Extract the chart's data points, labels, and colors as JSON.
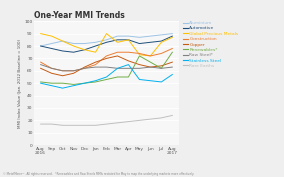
{
  "title": "One-Year MMI Trends",
  "ylabel": "MMI Index Value (Jan. 2012 Baseline = 100)",
  "x_labels": [
    "Aug\n2016",
    "Sep",
    "Oct",
    "Nov",
    "Dec",
    "Jan",
    "Feb",
    "Mar",
    "Apr",
    "May",
    "Jun",
    "Jul",
    "Aug\n2017"
  ],
  "ylim": [
    0,
    100
  ],
  "yticks": [
    0,
    10,
    20,
    30,
    40,
    50,
    60,
    70,
    80,
    90,
    100
  ],
  "series": [
    {
      "name": "Aluminium",
      "color": "#9dc3e6",
      "values": [
        80,
        82,
        84,
        82,
        82,
        83,
        85,
        88,
        88,
        87,
        88,
        89,
        90
      ]
    },
    {
      "name": "Automotive",
      "color": "#1f4e79",
      "values": [
        80,
        78,
        76,
        75,
        77,
        80,
        83,
        85,
        85,
        82,
        83,
        84,
        88
      ]
    },
    {
      "name": "Global Precious Metals",
      "color": "#ffc000",
      "values": [
        90,
        88,
        84,
        80,
        77,
        75,
        90,
        83,
        85,
        73,
        72,
        83,
        87
      ]
    },
    {
      "name": "Construction",
      "color": "#ed7d31",
      "values": [
        67,
        62,
        60,
        60,
        62,
        65,
        72,
        75,
        75,
        74,
        72,
        74,
        78
      ]
    },
    {
      "name": "Copper",
      "color": "#c55a11",
      "values": [
        62,
        58,
        56,
        58,
        63,
        67,
        70,
        72,
        68,
        65,
        63,
        64,
        67
      ]
    },
    {
      "name": "Renewables*",
      "color": "#70ad47",
      "values": [
        51,
        50,
        50,
        49,
        50,
        51,
        53,
        55,
        55,
        72,
        67,
        62,
        75
      ]
    },
    {
      "name": "Raw Steel*",
      "color": "#808080",
      "values": [
        65,
        62,
        60,
        60,
        62,
        63,
        63,
        62,
        62,
        62,
        63,
        62,
        63
      ]
    },
    {
      "name": "Stainless Steel",
      "color": "#00b0f0",
      "values": [
        50,
        48,
        46,
        48,
        50,
        52,
        55,
        62,
        65,
        53,
        52,
        51,
        57
      ]
    },
    {
      "name": "Rare Earths",
      "color": "#bfbfbf",
      "values": [
        17,
        17,
        16,
        16,
        16,
        16,
        17,
        18,
        19,
        20,
        21,
        22,
        24
      ]
    }
  ],
  "background_color": "#efefef",
  "plot_bg": "#f7f7f7",
  "grid_color": "#ffffff",
  "footnote": "© MetalMiner™. All rights reserved.   *Renewables and Raw Steels MMIs restated for May to map the underlying markets more effectively.",
  "title_fontsize": 5.5,
  "tick_fontsize": 3.2,
  "ylabel_fontsize": 3.0,
  "legend_fontsize": 3.2,
  "footnote_fontsize": 2.0
}
